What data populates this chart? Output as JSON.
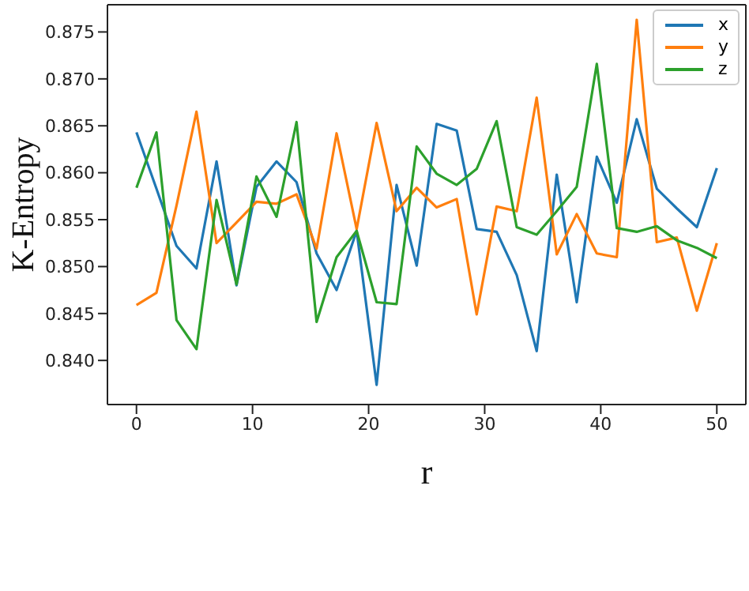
{
  "chart_data": {
    "type": "line",
    "xlabel": "r",
    "ylabel": "K-Entropy",
    "x": [
      0,
      1.72,
      3.45,
      5.17,
      6.9,
      8.62,
      10.34,
      12.07,
      13.79,
      15.52,
      17.24,
      18.97,
      20.69,
      22.41,
      24.14,
      25.86,
      27.59,
      29.31,
      31.03,
      32.76,
      34.48,
      36.21,
      37.93,
      39.66,
      41.38,
      43.1,
      44.83,
      46.55,
      48.28,
      50
    ],
    "series": [
      {
        "name": "x",
        "color": "#1f77b4",
        "values": [
          0.8643,
          0.8583,
          0.8522,
          0.8498,
          0.8612,
          0.848,
          0.8585,
          0.8612,
          0.859,
          0.8514,
          0.8475,
          0.8538,
          0.8374,
          0.8587,
          0.8501,
          0.8652,
          0.8645,
          0.854,
          0.8537,
          0.8491,
          0.841,
          0.8598,
          0.8462,
          0.8617,
          0.8568,
          0.8657,
          0.8583,
          0.8562,
          0.8542,
          0.8605
        ]
      },
      {
        "name": "y",
        "color": "#ff7f0e",
        "values": [
          0.8459,
          0.8472,
          0.8565,
          0.8665,
          0.8525,
          0.8547,
          0.8569,
          0.8567,
          0.8577,
          0.8519,
          0.8642,
          0.854,
          0.8653,
          0.8559,
          0.8584,
          0.8563,
          0.8572,
          0.8449,
          0.8564,
          0.8559,
          0.868,
          0.8513,
          0.8556,
          0.8514,
          0.851,
          0.8763,
          0.8526,
          0.8531,
          0.8453,
          0.8525
        ]
      },
      {
        "name": "z",
        "color": "#2ca02c",
        "values": [
          0.8584,
          0.8643,
          0.8443,
          0.8412,
          0.8571,
          0.8481,
          0.8596,
          0.8553,
          0.8654,
          0.8441,
          0.851,
          0.8538,
          0.8462,
          0.846,
          0.8628,
          0.8599,
          0.8587,
          0.8604,
          0.8655,
          0.8542,
          0.8534,
          0.8559,
          0.8585,
          0.8716,
          0.8541,
          0.8537,
          0.8543,
          0.8528,
          0.852,
          0.8509
        ]
      }
    ],
    "xlim": [
      -2.5,
      52.5
    ],
    "xticks": [
      0,
      10,
      20,
      30,
      40,
      50
    ],
    "ylim": [
      0.8353,
      0.8779
    ],
    "yticks": [
      {
        "value": 0.84,
        "label": "0.840"
      },
      {
        "value": 0.845,
        "label": "0.845"
      },
      {
        "value": 0.85,
        "label": "0.850"
      },
      {
        "value": 0.855,
        "label": "0.855"
      },
      {
        "value": 0.86,
        "label": "0.860"
      },
      {
        "value": 0.865,
        "label": "0.865"
      },
      {
        "value": 0.87,
        "label": "0.870"
      },
      {
        "value": 0.875,
        "label": "0.875"
      }
    ],
    "grid": false,
    "legend": "top right",
    "marker": "none",
    "line_style": "solid"
  }
}
